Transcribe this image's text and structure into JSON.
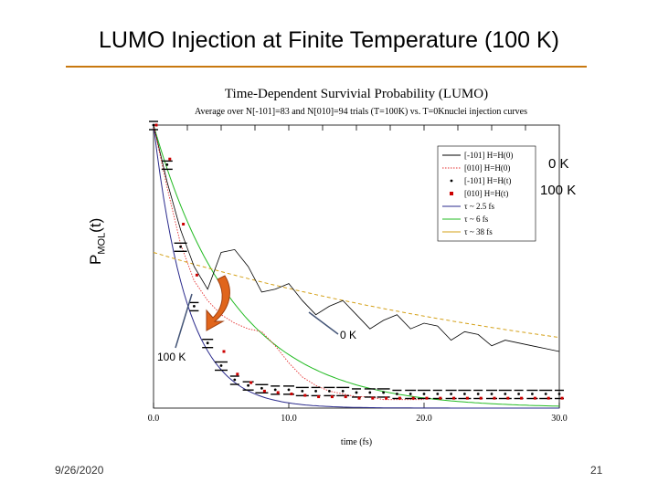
{
  "slide": {
    "title": "LUMO Injection at Finite Temperature (100 K)",
    "date": "9/26/2020",
    "page": "21"
  },
  "chart_data": {
    "type": "line",
    "title": "Time-Dependent Survivial Probability (LUMO)",
    "subtitle": "Average over  N[-101]=83 and N[010]=94 trials (T=100K) vs. T=0Knuclei injection curves",
    "xlabel": "time (fs)",
    "ylabel_main": "P",
    "ylabel_sub": "MOL",
    "ylabel_tail": "(t)",
    "xlim": [
      0,
      30
    ],
    "ylim": [
      0,
      1
    ],
    "x_ticks": [
      "0.0",
      "10.0",
      "20.0",
      "30.0"
    ],
    "grid": false,
    "legend_position": "top-right",
    "legend": [
      {
        "label": "[-101] H=H(0)",
        "color": "#000000",
        "style": "solid"
      },
      {
        "label": "[010] H=H(0)",
        "color": "#e53030",
        "style": "dotted"
      },
      {
        "label": "[-101] H=H(t)",
        "color": "#000000",
        "style": "marker-dot"
      },
      {
        "label": "[010] H=H(t)",
        "color": "#cc0000",
        "style": "marker-square"
      },
      {
        "label": "τ ~ 2.5 fs",
        "color": "#2a2a8c",
        "style": "solid"
      },
      {
        "label": "τ ~ 6 fs",
        "color": "#22bb22",
        "style": "solid"
      },
      {
        "label": "τ ~ 38 fs",
        "color": "#d4a017",
        "style": "solid"
      }
    ],
    "series": [
      {
        "name": "[-101] H=H(0)",
        "color": "#000000",
        "x": [
          0,
          1,
          2,
          3,
          4,
          5,
          6,
          7,
          8,
          9,
          10,
          11,
          12,
          13,
          14,
          15,
          16,
          17,
          18,
          19,
          20,
          21,
          22,
          23,
          24,
          25,
          26,
          27,
          28,
          29,
          30
        ],
        "y": [
          1.0,
          0.8,
          0.63,
          0.5,
          0.42,
          0.55,
          0.56,
          0.5,
          0.41,
          0.42,
          0.44,
          0.38,
          0.33,
          0.36,
          0.38,
          0.33,
          0.28,
          0.31,
          0.33,
          0.28,
          0.3,
          0.29,
          0.24,
          0.27,
          0.26,
          0.22,
          0.24,
          0.23,
          0.22,
          0.21,
          0.2
        ]
      },
      {
        "name": "[010] H=H(0)",
        "color": "#e53030",
        "x": [
          0,
          1,
          2,
          3,
          4,
          5,
          6,
          7,
          8,
          9,
          10,
          11,
          12,
          13,
          14,
          15,
          16,
          17,
          18,
          19,
          20
        ],
        "y": [
          1.0,
          0.78,
          0.58,
          0.45,
          0.38,
          0.33,
          0.3,
          0.28,
          0.27,
          0.22,
          0.16,
          0.11,
          0.08,
          0.06,
          0.05,
          0.04,
          0.04,
          0.03,
          0.03,
          0.03,
          0.03
        ]
      },
      {
        "name": "[-101] H=H(t)",
        "color": "#000000",
        "x": [
          0,
          1,
          2,
          3,
          4,
          5,
          6,
          7,
          8,
          9,
          10,
          11,
          12,
          13,
          14,
          15,
          16,
          17,
          18,
          19,
          20,
          21,
          22,
          23,
          24,
          25,
          26,
          27,
          28,
          29,
          30
        ],
        "y": [
          1.0,
          0.86,
          0.57,
          0.36,
          0.23,
          0.15,
          0.1,
          0.08,
          0.07,
          0.065,
          0.065,
          0.06,
          0.06,
          0.06,
          0.06,
          0.055,
          0.055,
          0.055,
          0.05,
          0.05,
          0.05,
          0.05,
          0.05,
          0.05,
          0.05,
          0.05,
          0.05,
          0.05,
          0.05,
          0.05,
          0.05
        ]
      },
      {
        "name": "[010] H=H(t)",
        "color": "#cc0000",
        "x": [
          0,
          1,
          2,
          3,
          4,
          5,
          6,
          7,
          8,
          9,
          10,
          11,
          12,
          13,
          14,
          15,
          16,
          17,
          18,
          19,
          20,
          21,
          22,
          23,
          24,
          25,
          26,
          27,
          28,
          29,
          30
        ],
        "y": [
          1.0,
          0.88,
          0.65,
          0.47,
          0.29,
          0.2,
          0.12,
          0.09,
          0.06,
          0.055,
          0.05,
          0.045,
          0.04,
          0.04,
          0.04,
          0.035,
          0.035,
          0.035,
          0.035,
          0.035,
          0.035,
          0.035,
          0.035,
          0.035,
          0.035,
          0.035,
          0.035,
          0.035,
          0.035,
          0.035,
          0.035
        ]
      },
      {
        "name": "τ ~ 2.5 fs",
        "color": "#2a2a8c",
        "tau": 2.5
      },
      {
        "name": "τ ~ 6 fs",
        "color": "#22bb22",
        "tau": 6
      },
      {
        "name": "τ ~ 38 fs",
        "color": "#d4a017",
        "tau": 38,
        "offset": 0.55
      }
    ],
    "annotations": [
      {
        "text": "0 K",
        "target": "legend-top"
      },
      {
        "text": "100 K",
        "target": "legend-bottom"
      },
      {
        "text": "0 K",
        "target": "mid-curve"
      },
      {
        "text": "100 K",
        "target": "lower-left"
      }
    ]
  }
}
